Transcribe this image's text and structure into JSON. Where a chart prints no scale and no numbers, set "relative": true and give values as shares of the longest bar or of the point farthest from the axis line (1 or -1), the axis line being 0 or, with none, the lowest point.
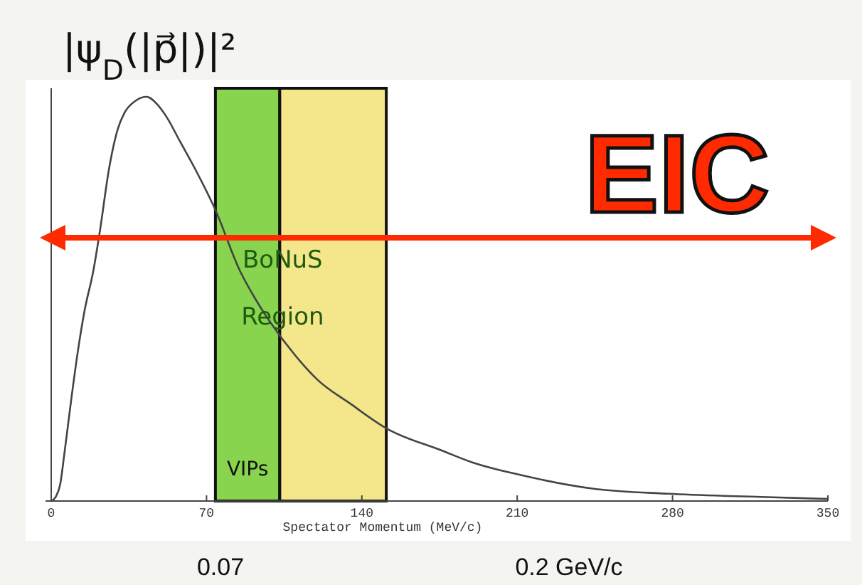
{
  "chart_data": {
    "type": "line",
    "relative": true,
    "ylabel": "|ψ$_{D}$(|p⃗|)|²",
    "xlabel": "Spectator Momentum (MeV/c)",
    "xlim": [
      0,
      350
    ],
    "xticks": [
      0,
      70,
      140,
      210,
      280,
      350
    ],
    "grid": false,
    "marker": "none",
    "line_style": "solid",
    "series": [
      {
        "color": "#444444",
        "x": [
          0,
          2,
          4,
          6,
          9,
          12,
          15,
          19,
          22,
          26,
          30,
          33,
          38,
          43,
          48,
          52,
          58,
          65,
          74,
          85,
          92,
          99,
          110,
          120,
          135,
          151,
          176,
          190,
          211,
          245,
          278,
          320,
          350
        ],
        "values": [
          0,
          0.01,
          0.04,
          0.12,
          0.25,
          0.37,
          0.47,
          0.57,
          0.67,
          0.82,
          0.92,
          0.96,
          0.99,
          1,
          0.98,
          0.95,
          0.89,
          0.82,
          0.72,
          0.57,
          0.5,
          0.44,
          0.36,
          0.3,
          0.24,
          0.18,
          0.125,
          0.095,
          0.065,
          0.03,
          0.018,
          0.01,
          0.005
        ]
      }
    ],
    "bands": [
      {
        "axis": "x",
        "from": 74,
        "to": 103,
        "label": "VIPs",
        "color": "#88d44f"
      },
      {
        "axis": "x",
        "from": 103,
        "to": 151,
        "label": "BoNuS Region",
        "color": "#f4e68a"
      }
    ],
    "annotations": [
      "EIC",
      "0.07",
      "0.2 GeV/c"
    ]
  }
}
